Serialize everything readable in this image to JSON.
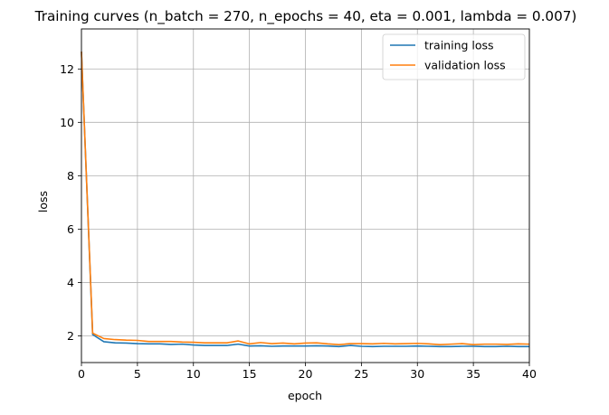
{
  "chart_data": {
    "type": "line",
    "title": "Training curves (n_batch = 270, n_epochs = 40, eta = 0.001, lambda = 0.007)",
    "xlabel": "epoch",
    "ylabel": "loss",
    "xlim": [
      0,
      40
    ],
    "ylim": [
      1.0,
      13.5
    ],
    "xticks": [
      0,
      5,
      10,
      15,
      20,
      25,
      30,
      35,
      40
    ],
    "yticks": [
      2,
      4,
      6,
      8,
      10,
      12
    ],
    "grid": true,
    "legend_position": "top-right",
    "x": [
      0,
      1,
      2,
      3,
      4,
      5,
      6,
      7,
      8,
      9,
      10,
      11,
      12,
      13,
      14,
      15,
      16,
      17,
      18,
      19,
      20,
      21,
      22,
      23,
      24,
      25,
      26,
      27,
      28,
      29,
      30,
      31,
      32,
      33,
      34,
      35,
      36,
      37,
      38,
      39,
      40
    ],
    "series": [
      {
        "name": "training loss",
        "color": "#1f77b4",
        "values": [
          12.65,
          2.05,
          1.78,
          1.74,
          1.73,
          1.71,
          1.7,
          1.7,
          1.68,
          1.69,
          1.66,
          1.64,
          1.64,
          1.64,
          1.69,
          1.62,
          1.63,
          1.61,
          1.62,
          1.62,
          1.62,
          1.63,
          1.62,
          1.6,
          1.64,
          1.61,
          1.6,
          1.61,
          1.61,
          1.61,
          1.62,
          1.61,
          1.6,
          1.6,
          1.61,
          1.61,
          1.6,
          1.6,
          1.61,
          1.6,
          1.6
        ]
      },
      {
        "name": "validation loss",
        "color": "#ff7f0e",
        "values": [
          12.65,
          2.1,
          1.9,
          1.86,
          1.84,
          1.83,
          1.79,
          1.79,
          1.79,
          1.77,
          1.76,
          1.74,
          1.74,
          1.74,
          1.81,
          1.7,
          1.75,
          1.71,
          1.73,
          1.7,
          1.73,
          1.74,
          1.7,
          1.67,
          1.71,
          1.71,
          1.7,
          1.72,
          1.7,
          1.71,
          1.72,
          1.7,
          1.67,
          1.69,
          1.71,
          1.67,
          1.69,
          1.69,
          1.68,
          1.7,
          1.69
        ]
      }
    ]
  }
}
